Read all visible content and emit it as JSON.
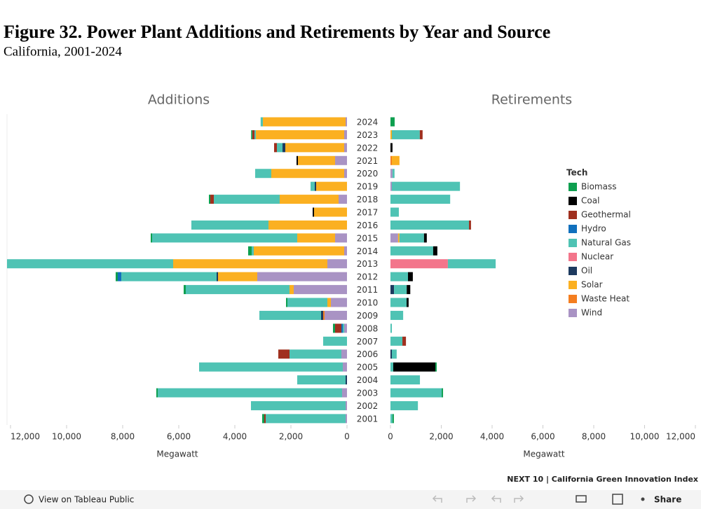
{
  "chart_data": {
    "type": "bar",
    "title": "Figure 32. Power Plant Additions and Retirements by Year and Source",
    "subtitle": "California, 2001-2024",
    "legend_title": "Tech",
    "categories": [
      "2024",
      "2023",
      "2022",
      "2021",
      "2020",
      "2019",
      "2018",
      "2017",
      "2016",
      "2015",
      "2014",
      "2013",
      "2012",
      "2011",
      "2010",
      "2009",
      "2008",
      "2007",
      "2006",
      "2005",
      "2004",
      "2003",
      "2002",
      "2001"
    ],
    "panels": [
      {
        "title": "Additions",
        "xlabel": "Megawatt",
        "xlim": [
          12000,
          0
        ],
        "xticks": [
          {
            "value": 12000,
            "label": "12,000"
          },
          {
            "value": 10000,
            "label": "10,000"
          },
          {
            "value": 8000,
            "label": "8,000"
          },
          {
            "value": 6000,
            "label": "6,000"
          },
          {
            "value": 4000,
            "label": "4,000"
          },
          {
            "value": 2000,
            "label": "2,000"
          },
          0
        ]
      },
      {
        "title": "Retirements",
        "xlabel": "Megawatt",
        "xlim": [
          0,
          12000
        ],
        "xticks": [
          0,
          {
            "value": 2000,
            "label": "2,000"
          },
          {
            "value": 4000,
            "label": "4,000"
          },
          {
            "value": 6000,
            "label": "6,000"
          },
          {
            "value": 8000,
            "label": "8,000"
          },
          {
            "value": 10000,
            "label": "10,000"
          },
          {
            "value": 12000,
            "label": "12,000"
          }
        ]
      }
    ],
    "series": [
      {
        "name": "Biomass",
        "color": "#0e9f4f",
        "additions": [
          0,
          40,
          0,
          0,
          0,
          0,
          50,
          0,
          0,
          50,
          125,
          0,
          75,
          75,
          50,
          0,
          75,
          0,
          0,
          0,
          0,
          50,
          0,
          75
        ],
        "retirements": [
          165,
          0,
          0,
          0,
          0,
          0,
          0,
          0,
          0,
          0,
          0,
          0,
          0,
          0,
          0,
          0,
          0,
          0,
          0,
          55,
          0,
          55,
          0,
          55
        ]
      },
      {
        "name": "Coal",
        "color": "#000000",
        "additions": [
          0,
          0,
          0,
          50,
          0,
          0,
          0,
          50,
          0,
          0,
          0,
          0,
          0,
          0,
          0,
          0,
          0,
          0,
          0,
          0,
          0,
          0,
          0,
          0
        ],
        "retirements": [
          0,
          0,
          80,
          0,
          0,
          0,
          0,
          0,
          0,
          110,
          165,
          0,
          190,
          140,
          80,
          0,
          0,
          0,
          0,
          1655,
          0,
          0,
          0,
          0
        ]
      },
      {
        "name": "Geothermal",
        "color": "#a0301f",
        "additions": [
          0,
          80,
          100,
          0,
          0,
          0,
          125,
          0,
          0,
          0,
          0,
          0,
          0,
          0,
          0,
          0,
          225,
          0,
          400,
          0,
          0,
          0,
          0,
          50
        ],
        "retirements": [
          0,
          110,
          0,
          0,
          0,
          0,
          0,
          0,
          80,
          0,
          0,
          0,
          0,
          0,
          0,
          0,
          0,
          140,
          0,
          0,
          0,
          0,
          0,
          0
        ]
      },
      {
        "name": "Hydro",
        "color": "#1170bd",
        "additions": [
          0,
          0,
          0,
          0,
          0,
          0,
          0,
          0,
          0,
          0,
          0,
          0,
          125,
          0,
          0,
          0,
          50,
          0,
          0,
          0,
          0,
          0,
          0,
          0
        ],
        "retirements": [
          0,
          0,
          0,
          0,
          0,
          0,
          0,
          0,
          0,
          0,
          0,
          0,
          0,
          0,
          0,
          0,
          0,
          0,
          0,
          0,
          0,
          0,
          0,
          0
        ]
      },
      {
        "name": "Natural Gas",
        "color": "#4fc3b4",
        "additions": [
          80,
          50,
          200,
          0,
          575,
          150,
          2350,
          0,
          2750,
          5175,
          75,
          5925,
          3400,
          3700,
          1425,
          2200,
          50,
          850,
          1850,
          5125,
          1725,
          6575,
          3375,
          2850
        ],
        "retirements": [
          0,
          1100,
          0,
          0,
          80,
          2680,
          2350,
          330,
          3090,
          965,
          1680,
          1880,
          690,
          500,
          635,
          500,
          55,
          470,
          190,
          110,
          1160,
          2015,
          1080,
          80
        ]
      },
      {
        "name": "Nuclear",
        "color": "#f3758b",
        "additions": [
          0,
          0,
          0,
          0,
          0,
          0,
          0,
          0,
          0,
          0,
          0,
          0,
          0,
          0,
          0,
          0,
          0,
          0,
          0,
          0,
          0,
          0,
          0,
          0
        ],
        "retirements": [
          0,
          0,
          0,
          0,
          0,
          0,
          0,
          0,
          0,
          0,
          0,
          2260,
          0,
          0,
          0,
          0,
          0,
          0,
          0,
          0,
          0,
          0,
          0,
          0
        ]
      },
      {
        "name": "Oil",
        "color": "#1d3a5f",
        "additions": [
          0,
          0,
          100,
          0,
          0,
          50,
          0,
          0,
          0,
          0,
          0,
          0,
          50,
          0,
          0,
          75,
          0,
          0,
          0,
          0,
          50,
          0,
          0,
          0
        ],
        "retirements": [
          0,
          0,
          0,
          0,
          0,
          0,
          0,
          0,
          0,
          0,
          0,
          0,
          0,
          140,
          0,
          0,
          0,
          0,
          55,
          0,
          0,
          0,
          0,
          0
        ]
      },
      {
        "name": "Solar",
        "color": "#fbb021",
        "additions": [
          2950,
          3150,
          2100,
          1325,
          2600,
          1100,
          2100,
          1175,
          2800,
          1350,
          3225,
          5500,
          1400,
          150,
          125,
          0,
          0,
          0,
          0,
          0,
          0,
          0,
          0,
          0
        ],
        "retirements": [
          0,
          55,
          0,
          300,
          0,
          0,
          0,
          0,
          0,
          55,
          0,
          0,
          0,
          0,
          0,
          0,
          0,
          0,
          0,
          0,
          0,
          0,
          0,
          0
        ]
      },
      {
        "name": "Waste Heat",
        "color": "#f47e20",
        "additions": [
          0,
          0,
          0,
          0,
          0,
          0,
          0,
          0,
          0,
          0,
          0,
          0,
          0,
          0,
          0,
          50,
          0,
          0,
          0,
          0,
          0,
          0,
          0,
          0
        ],
        "retirements": [
          0,
          0,
          0,
          55,
          0,
          0,
          0,
          0,
          0,
          0,
          0,
          0,
          0,
          0,
          0,
          0,
          0,
          0,
          0,
          0,
          0,
          0,
          0,
          0
        ]
      },
      {
        "name": "Wind",
        "color": "#a993c4",
        "additions": [
          50,
          100,
          100,
          425,
          100,
          0,
          300,
          0,
          0,
          425,
          100,
          700,
          3200,
          1900,
          575,
          800,
          100,
          0,
          200,
          150,
          0,
          175,
          50,
          50
        ],
        "retirements": [
          0,
          0,
          0,
          0,
          80,
          55,
          0,
          0,
          0,
          300,
          0,
          0,
          0,
          0,
          0,
          0,
          0,
          0,
          0,
          0,
          0,
          0,
          0,
          0
        ]
      }
    ]
  },
  "footer": {
    "credit": "NEXT 10 | California Green Innovation Index",
    "view": "View on Tableau Public",
    "share": "Share"
  }
}
